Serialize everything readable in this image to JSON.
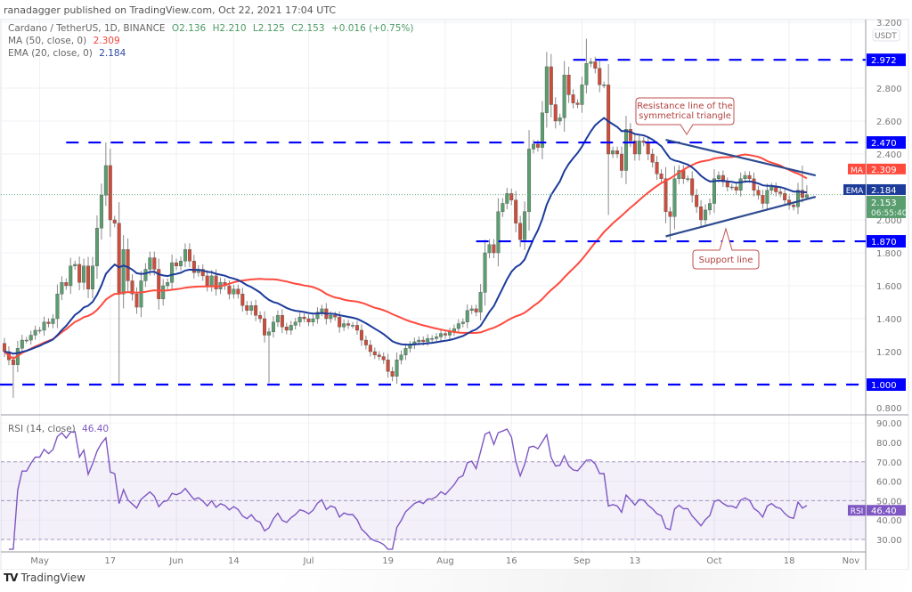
{
  "publisher_line": "ranadagger published on TradingView.com, Oct 22, 2021 17:04 UTC",
  "legend": {
    "symbol": "Cardano / TetherUS, 1D, BINANCE",
    "open": "O2.136",
    "high": "H2.210",
    "low": "L2.125",
    "close": "C2.153",
    "change": "+0.016 (+0.75%)",
    "ma_label": "MA (50, close, 0)",
    "ma_value": "2.309",
    "ema_label": "EMA (20, close, 0)",
    "ema_value": "2.184",
    "rsi_label": "RSI (14, close)",
    "rsi_value": "46.40"
  },
  "footer": {
    "brand": "TradingView",
    "logo": "TV"
  },
  "colors": {
    "up": "#5a9e6f",
    "down": "#cf4c3a",
    "ma": "#ff4a3d",
    "ema": "#1d3c9a",
    "level": "#0000ff",
    "trendline": "#2c4a8e",
    "rsi": "#7e57c2",
    "annotation_border": "#c0504d",
    "annotation_text": "#b0413e",
    "last_price": "#5a9e6f"
  },
  "chart_data": [
    {
      "type": "candlestick",
      "title": "Cardano / TetherUS, 1D, BINANCE",
      "currency_label": "USDT",
      "start_date": "2021-04-23",
      "close": [
        1.2,
        1.15,
        1.12,
        1.22,
        1.27,
        1.27,
        1.3,
        1.33,
        1.33,
        1.38,
        1.37,
        1.4,
        1.55,
        1.62,
        1.6,
        1.72,
        1.73,
        1.62,
        1.72,
        1.58,
        1.72,
        1.95,
        2.15,
        2.33,
        2.0,
        1.98,
        1.55,
        1.82,
        1.63,
        1.55,
        1.47,
        1.63,
        1.7,
        1.77,
        1.7,
        1.52,
        1.6,
        1.62,
        1.74,
        1.72,
        1.75,
        1.82,
        1.75,
        1.68,
        1.7,
        1.66,
        1.6,
        1.66,
        1.58,
        1.62,
        1.6,
        1.55,
        1.58,
        1.55,
        1.48,
        1.45,
        1.48,
        1.42,
        1.4,
        1.3,
        1.32,
        1.38,
        1.42,
        1.35,
        1.33,
        1.36,
        1.38,
        1.41,
        1.4,
        1.38,
        1.4,
        1.44,
        1.46,
        1.4,
        1.42,
        1.41,
        1.35,
        1.37,
        1.36,
        1.36,
        1.33,
        1.27,
        1.24,
        1.2,
        1.18,
        1.17,
        1.15,
        1.08,
        1.05,
        1.15,
        1.18,
        1.22,
        1.24,
        1.26,
        1.27,
        1.26,
        1.28,
        1.28,
        1.29,
        1.31,
        1.3,
        1.32,
        1.34,
        1.37,
        1.38,
        1.45,
        1.46,
        1.44,
        1.56,
        1.8,
        1.85,
        1.8,
        2.05,
        2.1,
        2.16,
        2.12,
        1.98,
        1.88,
        2.05,
        2.43,
        2.46,
        2.44,
        2.65,
        2.93,
        2.7,
        2.6,
        2.62,
        2.88,
        2.76,
        2.71,
        2.7,
        2.82,
        2.95,
        2.96,
        2.92,
        2.82,
        2.82,
        2.4,
        2.42,
        2.4,
        2.3,
        2.55,
        2.48,
        2.4,
        2.48,
        2.47,
        2.4,
        2.35,
        2.28,
        2.25,
        2.05,
        2.02,
        2.25,
        2.3,
        2.25,
        2.25,
        2.15,
        2.08,
        2.0,
        2.06,
        2.1,
        2.25,
        2.27,
        2.23,
        2.2,
        2.2,
        2.18,
        2.25,
        2.27,
        2.25,
        2.18,
        2.15,
        2.1,
        2.18,
        2.2,
        2.17,
        2.16,
        2.12,
        2.09,
        2.08,
        2.18,
        2.136,
        2.153
      ],
      "wick_extremes": [
        {
          "date": "2021-04-25",
          "low": 0.92
        },
        {
          "date": "2021-05-16",
          "high": 2.47
        },
        {
          "date": "2021-05-19",
          "low": 1.0
        },
        {
          "date": "2021-06-22",
          "low": 1.01
        },
        {
          "date": "2021-07-20",
          "low": 1.02
        },
        {
          "date": "2021-09-02",
          "high": 3.1
        },
        {
          "date": "2021-09-07",
          "low": 2.03
        },
        {
          "date": "2021-09-21",
          "low": 1.88
        },
        {
          "date": "2021-10-21",
          "high": 2.33
        },
        {
          "date": "2021-10-22",
          "high": 2.21,
          "low": 2.125
        }
      ],
      "ylim": [
        0.8,
        3.2
      ],
      "y_ticks": [
        "3.200",
        "2.800",
        "2.600",
        "2.400",
        "2.000",
        "1.800",
        "1.600",
        "1.400",
        "1.200",
        "0.800"
      ],
      "x_ticks": [
        {
          "label": "May",
          "date": "2021-05-01"
        },
        {
          "label": "17",
          "date": "2021-05-17"
        },
        {
          "label": "Jun",
          "date": "2021-06-01"
        },
        {
          "label": "14",
          "date": "2021-06-14"
        },
        {
          "label": "Jul",
          "date": "2021-07-01"
        },
        {
          "label": "19",
          "date": "2021-07-19"
        },
        {
          "label": "Aug",
          "date": "2021-08-01"
        },
        {
          "label": "16",
          "date": "2021-08-16"
        },
        {
          "label": "Sep",
          "date": "2021-09-01"
        },
        {
          "label": "13",
          "date": "2021-09-13"
        },
        {
          "label": "Oct",
          "date": "2021-10-01"
        },
        {
          "label": "18",
          "date": "2021-10-18"
        },
        {
          "label": "Nov",
          "date": "2021-11-01"
        }
      ],
      "overlays": [
        {
          "name": "MA",
          "period": 50,
          "value_label": "2.309"
        },
        {
          "name": "EMA",
          "period": 20,
          "value_label": "2.184"
        }
      ],
      "last_price": {
        "value": "2.153",
        "countdown": "06:55:40"
      },
      "levels": [
        {
          "value": 2.972,
          "label": "2.972",
          "from_date": "2021-08-30"
        },
        {
          "value": 2.47,
          "label": "2.470",
          "from_date": "2021-05-07"
        },
        {
          "value": 1.87,
          "label": "1.870",
          "from_date": "2021-08-08"
        },
        {
          "value": 1.0,
          "label": "1.000",
          "from_date": "2021-04-22"
        }
      ],
      "trendlines": [
        {
          "name": "resistance",
          "from": {
            "date": "2021-09-20",
            "price": 2.486
          },
          "to": {
            "date": "2021-10-24",
            "price": 2.27
          }
        },
        {
          "name": "support",
          "from": {
            "date": "2021-09-20",
            "price": 1.9
          },
          "to": {
            "date": "2021-10-24",
            "price": 2.14
          }
        }
      ],
      "annotations": [
        {
          "text_lines": [
            "Resistance line of the",
            "symmetrical triangle"
          ],
          "points_to": "resistance"
        },
        {
          "text_lines": [
            "Support line"
          ],
          "points_to": "support"
        }
      ]
    },
    {
      "type": "line",
      "title": "RSI (14, close)",
      "series": [
        {
          "name": "RSI",
          "period": 14,
          "last_value": "46.40"
        }
      ],
      "ylim": [
        25,
        92
      ],
      "band": [
        30,
        70
      ],
      "midline": 50,
      "y_ticks": [
        "90.00",
        "80.00",
        "70.00",
        "60.00",
        "50.00",
        "40.00",
        "30.00"
      ]
    }
  ]
}
